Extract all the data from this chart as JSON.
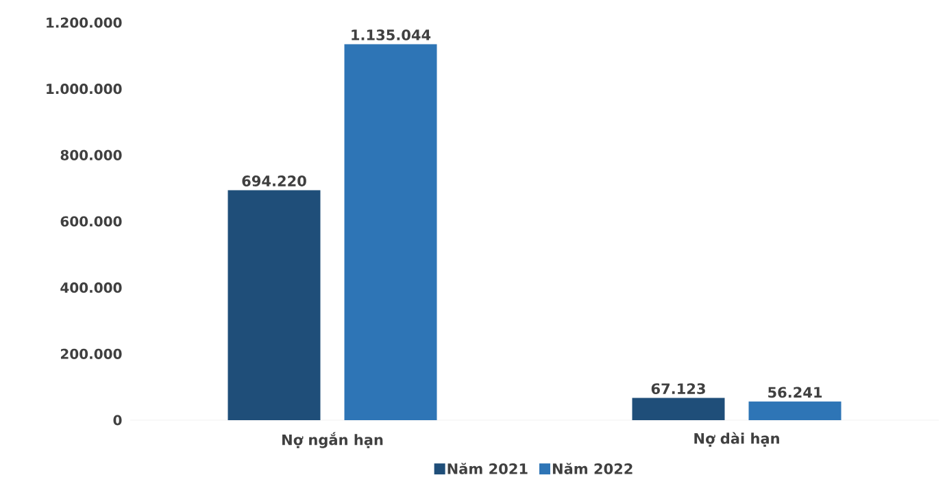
{
  "chart_data": {
    "type": "bar",
    "categories": [
      "Nợ ngắn hạn",
      "Nợ dài hạn"
    ],
    "series": [
      {
        "name": "Năm 2021",
        "color": "#1f4e79",
        "values": [
          694220,
          67123
        ],
        "value_labels": [
          "694.220",
          "67.123"
        ]
      },
      {
        "name": "Năm 2022",
        "color": "#2e75b6",
        "values": [
          1135044,
          56241
        ],
        "value_labels": [
          "1.135.044",
          "56.241"
        ]
      }
    ],
    "ylim": [
      0,
      1200000
    ],
    "yticks": [
      {
        "value": 0,
        "label": "0"
      },
      {
        "value": 200000,
        "label": "200.000"
      },
      {
        "value": 400000,
        "label": "400.000"
      },
      {
        "value": 600000,
        "label": "600.000"
      },
      {
        "value": 800000,
        "label": "800.000"
      },
      {
        "value": 1000000,
        "label": "1.000.000"
      },
      {
        "value": 1200000,
        "label": "1.200.000"
      }
    ],
    "legend": "bottom"
  }
}
